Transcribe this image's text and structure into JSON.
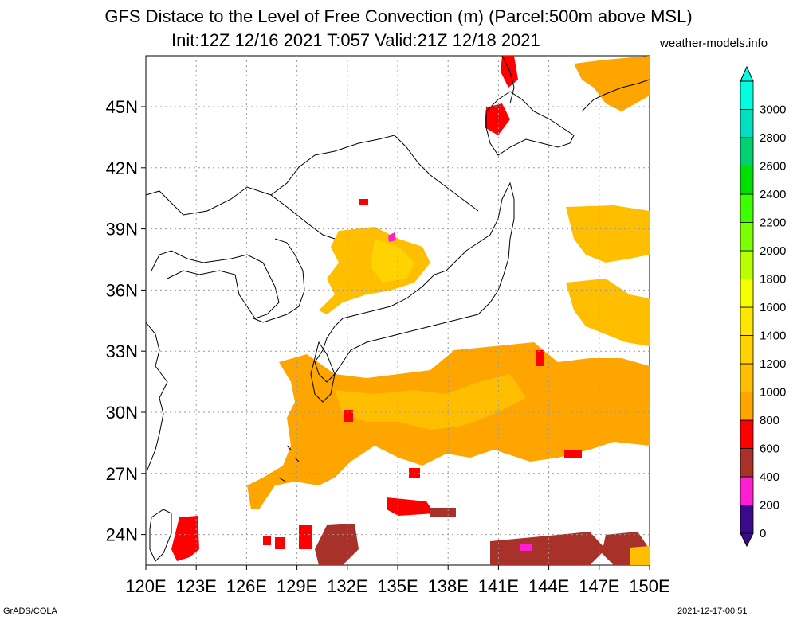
{
  "title": {
    "line1": "GFS Distace to the Level of Free Convection (m) (Parcel:500m above MSL)",
    "line2": "Init:12Z 12/16 2021 T:057 Valid:21Z 12/18 2021"
  },
  "site": "weather-models.info",
  "footer": {
    "left": "GrADS/COLA",
    "right": "2021-12-17-00:51"
  },
  "map": {
    "lon_range": [
      120,
      150
    ],
    "lat_range": [
      22.5,
      47.5
    ],
    "lat_labels": [
      "45N",
      "42N",
      "39N",
      "36N",
      "33N",
      "30N",
      "27N",
      "24N"
    ],
    "lat_values": [
      45,
      42,
      39,
      36,
      33,
      30,
      27,
      24
    ],
    "lon_labels": [
      "120E",
      "123E",
      "126E",
      "129E",
      "132E",
      "135E",
      "138E",
      "141E",
      "144E",
      "147E",
      "150E"
    ],
    "lon_values": [
      120,
      123,
      126,
      129,
      132,
      135,
      138,
      141,
      144,
      147,
      150
    ],
    "grid": true
  },
  "colorbar": {
    "labels": [
      "0",
      "200",
      "400",
      "600",
      "800",
      "1000",
      "1200",
      "1400",
      "1600",
      "1800",
      "2000",
      "2200",
      "2400",
      "2600",
      "2800",
      "3000"
    ],
    "colors": [
      "#3a0a8a",
      "#ff1fd2",
      "#a8312a",
      "#ff0000",
      "#ffa500",
      "#ffbf00",
      "#ffd300",
      "#ffe600",
      "#f5ff00",
      "#b8ff00",
      "#7cff00",
      "#3cff00",
      "#00e000",
      "#00d070",
      "#00e0c0",
      "#00ffe0"
    ],
    "units": "m"
  }
}
